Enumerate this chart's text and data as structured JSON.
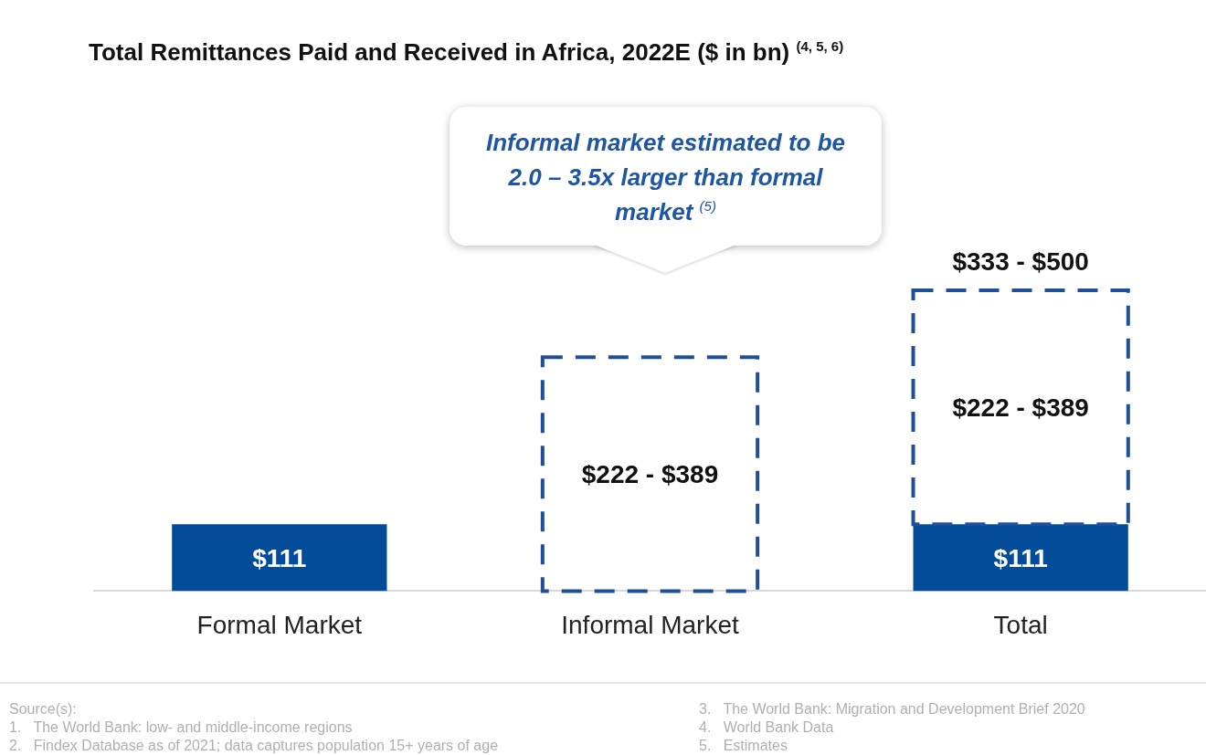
{
  "chart_data": {
    "type": "bar",
    "title": "Total Remittances Paid and Received in Africa, 2022E ($ in bn) $^{(4, 5, 6)}$",
    "categories": [
      "Formal Market",
      "Informal Market",
      "Total"
    ],
    "series": [
      {
        "color": "#034c9a",
        "values": [
          111,
          null,
          111
        ],
        "value_labels": [
          "$111",
          null,
          "$111"
        ]
      },
      {
        "color": "#1f4f98",
        "line_style": "dashed",
        "values": [
          null,
          389,
          389
        ]
      }
    ],
    "totals": [
      null,
      null,
      "$333 - $500"
    ],
    "legend": false,
    "grid": false,
    "stacked": true,
    "annotations": [
      "$222 - $389",
      "$222 - $389",
      "Informal market estimated to be  2.0 – 3.5x larger than formal market $^{(5)}$",
      "Source(s):",
      "1.   The World Bank: low- and middle-income regions",
      "2.   Findex Database as of 2021; data captures population 15+ years of age",
      "3.   The World Bank: Migration and Development Brief 2020",
      "4.   World Bank Data",
      "5.   Estimates"
    ]
  }
}
